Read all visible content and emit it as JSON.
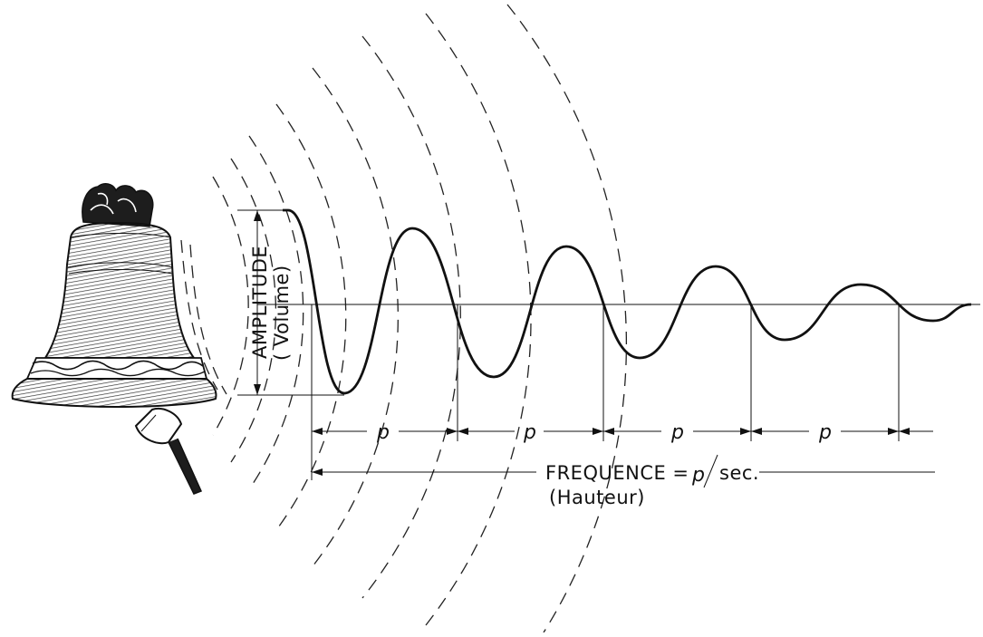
{
  "amplitude": {
    "label": "AMPLITUDE",
    "sub_label": "( Volume)"
  },
  "period": {
    "symbol": "p",
    "count": 4
  },
  "frequency": {
    "label": "FREQUENCE =",
    "symbol": "p",
    "unit": "sec.",
    "sub_label": "(Hauteur)"
  },
  "waveform": {
    "description_type": "damped-oscillation",
    "cycles": 4.5
  },
  "colors": {
    "ink": "#111111",
    "paper": "#ffffff",
    "bell_shadow": "#2a2a2a"
  },
  "icons": [
    "bell-icon",
    "clapper-icon"
  ]
}
